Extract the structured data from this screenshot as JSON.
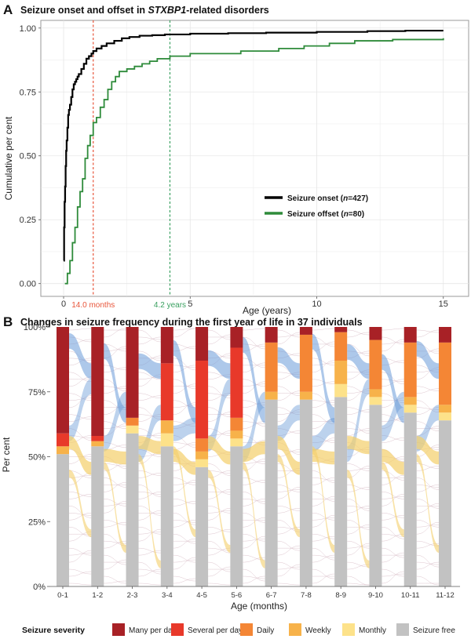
{
  "panel_a": {
    "letter": "A",
    "title_prefix": "Seizure onset and offset in ",
    "title_gene": "STXBP1",
    "title_suffix": "-related disorders",
    "legend": [
      {
        "prefix": "Seizure onset (",
        "n_label": "n",
        "suffix": "=427)"
      },
      {
        "prefix": "Seizure offset (",
        "n_label": "n",
        "suffix": "=80)"
      }
    ],
    "median_labels": [
      "14.0 months",
      "4.2 years"
    ]
  },
  "panel_b": {
    "letter": "B",
    "title": "Changes in seizure frequency during the first year of life in 37 individuals",
    "legend_title": "Seizure severity"
  },
  "colors": {
    "onset": "#000000",
    "offset": "#2e8b3a",
    "median_onset": "#e8553a",
    "median_offset": "#3aa060",
    "flow_blue": "#6a9bd8",
    "flow_yellow": "#f3cf6a",
    "flow_thin": "#d8bcc6",
    "grid": "#e6e6e6"
  },
  "chart_data": [
    {
      "type": "line",
      "xlabel": "Age (years)",
      "ylabel": "Cumulative per cent",
      "xlim": [
        -0.9,
        16.0
      ],
      "ylim": [
        -0.05,
        1.03
      ],
      "x_ticks": [
        0,
        5,
        10,
        15
      ],
      "y_ticks": [
        0.0,
        0.25,
        0.5,
        0.75,
        1.0
      ],
      "y_tick_labels": [
        "0.00",
        "0.25",
        "0.50",
        "0.75",
        "1.00"
      ],
      "grid": true,
      "legend_position": "right",
      "step": true,
      "series": [
        {
          "name": "Seizure onset (n=427)",
          "color": "#000000",
          "x": [
            0,
            0.02,
            0.04,
            0.06,
            0.08,
            0.1,
            0.12,
            0.15,
            0.18,
            0.21,
            0.25,
            0.3,
            0.35,
            0.4,
            0.45,
            0.5,
            0.55,
            0.6,
            0.7,
            0.8,
            0.9,
            1.0,
            1.1,
            1.17,
            1.3,
            1.5,
            1.7,
            2.0,
            2.3,
            2.6,
            3.0,
            3.5,
            4.0,
            5.0,
            6.5,
            8.0,
            10.0,
            12.0,
            13.5,
            15.0
          ],
          "y": [
            0.09,
            0.22,
            0.32,
            0.38,
            0.46,
            0.52,
            0.56,
            0.61,
            0.66,
            0.68,
            0.7,
            0.73,
            0.76,
            0.78,
            0.79,
            0.8,
            0.81,
            0.82,
            0.84,
            0.86,
            0.88,
            0.89,
            0.9,
            0.91,
            0.92,
            0.93,
            0.94,
            0.95,
            0.96,
            0.965,
            0.97,
            0.972,
            0.975,
            0.978,
            0.98,
            0.982,
            0.985,
            0.988,
            0.99,
            0.99
          ]
        },
        {
          "name": "Seizure offset (n=80)",
          "color": "#2e8b3a",
          "x": [
            0.05,
            0.15,
            0.25,
            0.35,
            0.45,
            0.55,
            0.65,
            0.75,
            0.85,
            0.95,
            1.05,
            1.17,
            1.3,
            1.45,
            1.6,
            1.75,
            1.9,
            2.05,
            2.2,
            2.5,
            2.8,
            3.1,
            3.4,
            3.7,
            4.2,
            5.0,
            6.0,
            7.0,
            7.5,
            8.5,
            9.5,
            10.5,
            11.5,
            13.0,
            15.0
          ],
          "y": [
            0.0,
            0.04,
            0.09,
            0.16,
            0.22,
            0.3,
            0.36,
            0.41,
            0.49,
            0.54,
            0.58,
            0.63,
            0.65,
            0.69,
            0.72,
            0.76,
            0.79,
            0.81,
            0.83,
            0.84,
            0.85,
            0.86,
            0.87,
            0.88,
            0.89,
            0.9,
            0.9,
            0.91,
            0.91,
            0.92,
            0.93,
            0.94,
            0.95,
            0.955,
            0.96
          ]
        }
      ],
      "annotations": [
        {
          "text": "14.0 months",
          "x": 1.17,
          "color": "#e8553a",
          "style": "dashed vertical line"
        },
        {
          "text": "4.2 years",
          "x": 4.2,
          "color": "#3aa060",
          "style": "dashed vertical line"
        }
      ]
    },
    {
      "type": "bar",
      "stacked": true,
      "subtype": "alluvial",
      "xlabel": "Age (months)",
      "ylabel": "Per cent",
      "ylim": [
        0,
        100
      ],
      "y_ticks": [
        0,
        25,
        50,
        75,
        100
      ],
      "y_tick_labels": [
        "0%",
        "25%",
        "50%",
        "75%",
        "100%"
      ],
      "legend_position": "bottom",
      "legend_title": "Seizure severity",
      "categories": [
        "0-1",
        "1-2",
        "2-3",
        "3-4",
        "4-5",
        "5-6",
        "6-7",
        "7-8",
        "8-9",
        "9-10",
        "10-11",
        "11-12"
      ],
      "series": [
        {
          "name": "Seizure free",
          "color": "#c2c2c2",
          "values": [
            51,
            54,
            59,
            54,
            46,
            54,
            72,
            72,
            73,
            70,
            67,
            64
          ]
        },
        {
          "name": "Monthly",
          "color": "#fde28a",
          "values": [
            0,
            0,
            3,
            5,
            3,
            3,
            0,
            0,
            5,
            3,
            3,
            3
          ]
        },
        {
          "name": "Weekly",
          "color": "#f7b24a",
          "values": [
            3,
            2,
            0,
            5,
            3,
            3,
            3,
            3,
            9,
            3,
            3,
            3
          ]
        },
        {
          "name": "Daily",
          "color": "#f48635",
          "values": [
            0,
            0,
            3,
            0,
            5,
            5,
            19,
            22,
            11,
            19,
            21,
            24
          ]
        },
        {
          "name": "Several per day",
          "color": "#e8392a",
          "values": [
            5,
            2,
            0,
            22,
            30,
            27,
            0,
            0,
            0,
            0,
            0,
            0
          ]
        },
        {
          "name": "Many per day",
          "color": "#a82126",
          "values": [
            41,
            42,
            35,
            14,
            13,
            8,
            6,
            3,
            2,
            5,
            6,
            6
          ]
        }
      ]
    }
  ]
}
